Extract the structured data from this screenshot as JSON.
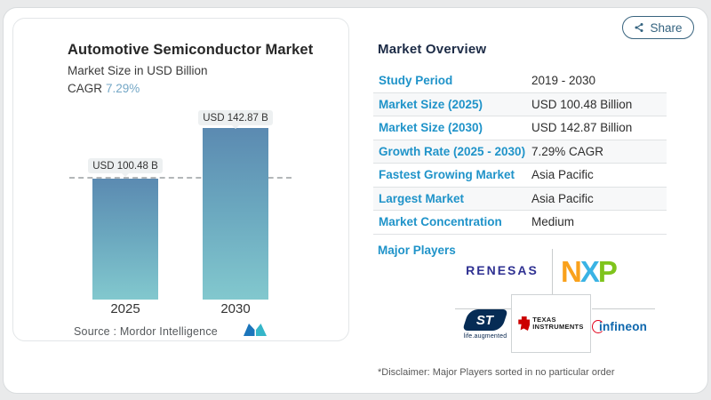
{
  "share": {
    "label": "Share",
    "icon": "share-nodes-icon"
  },
  "chart_card": {
    "title": "Automotive Semiconductor Market",
    "subtitle": "Market Size in USD Billion",
    "cagr_label": "CAGR",
    "cagr_value": "7.29%",
    "source_text": "Source :  Mordor Intelligence",
    "logo": "mordor-intelligence-logo"
  },
  "chart_data": {
    "type": "bar",
    "categories": [
      "2025",
      "2030"
    ],
    "values": [
      100.48,
      142.87
    ],
    "value_labels": [
      "USD 100.48 B",
      "USD 142.87 B"
    ],
    "title": "Automotive Semiconductor Market",
    "subtitle": "Market Size in USD Billion",
    "unit": "USD Billion",
    "cagr": "7.29%",
    "reference_line_value": 100.48,
    "bar_color_top": "#5b8ab1",
    "bar_color_bottom": "#82c8ce",
    "grid": "off",
    "legend": "none"
  },
  "overview": {
    "title": "Market Overview",
    "rows": [
      {
        "label": "Study Period",
        "value": "2019 - 2030"
      },
      {
        "label": "Market Size (2025)",
        "value": "USD 100.48 Billion"
      },
      {
        "label": "Market Size (2030)",
        "value": "USD 142.87 Billion"
      },
      {
        "label": "Growth Rate (2025 - 2030)",
        "value": "7.29% CAGR"
      },
      {
        "label": "Fastest Growing Market",
        "value": "Asia Pacific"
      },
      {
        "label": "Largest Market",
        "value": "Asia Pacific"
      },
      {
        "label": "Market Concentration",
        "value": "Medium"
      }
    ],
    "major_players_label": "Major Players",
    "players": {
      "renesas": "RENESAS",
      "nxp_n": "N",
      "nxp_x": "X",
      "nxp_p": "P",
      "st": "ST",
      "st_tagline": "life.augmented",
      "ti_line1": "TEXAS",
      "ti_line2": "INSTRUMENTS",
      "infineon": "infineon"
    },
    "disclaimer": "*Disclaimer: Major Players sorted in no particular order"
  },
  "colors": {
    "accent_blue": "#1f93c9",
    "heading_navy": "#1c2b46",
    "cagr_blue": "#74a7c6",
    "bar_top": "#5b8ab1",
    "bar_bottom": "#82c8ce",
    "share_outline": "#39647f"
  }
}
